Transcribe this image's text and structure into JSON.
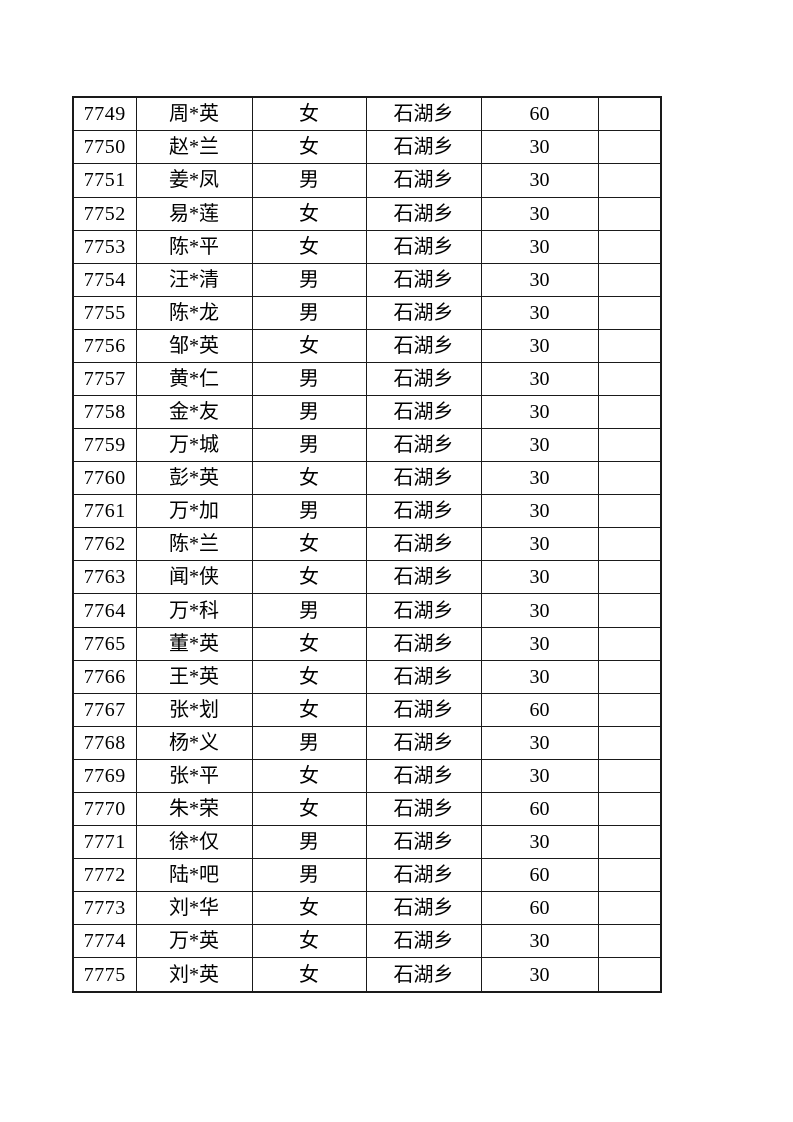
{
  "page": {
    "background_color": "#ffffff",
    "border_color": "#1a1a1a"
  },
  "table": {
    "field_order": [
      "id",
      "name",
      "gender",
      "township",
      "amount",
      "note"
    ],
    "rows": [
      {
        "id": "7749",
        "name": "周*英",
        "gender": "女",
        "township": "石湖乡",
        "amount": "60",
        "note": ""
      },
      {
        "id": "7750",
        "name": "赵*兰",
        "gender": "女",
        "township": "石湖乡",
        "amount": "30",
        "note": ""
      },
      {
        "id": "7751",
        "name": "姜*凤",
        "gender": "男",
        "township": "石湖乡",
        "amount": "30",
        "note": ""
      },
      {
        "id": "7752",
        "name": "易*莲",
        "gender": "女",
        "township": "石湖乡",
        "amount": "30",
        "note": ""
      },
      {
        "id": "7753",
        "name": "陈*平",
        "gender": "女",
        "township": "石湖乡",
        "amount": "30",
        "note": ""
      },
      {
        "id": "7754",
        "name": "汪*清",
        "gender": "男",
        "township": "石湖乡",
        "amount": "30",
        "note": ""
      },
      {
        "id": "7755",
        "name": "陈*龙",
        "gender": "男",
        "township": "石湖乡",
        "amount": "30",
        "note": ""
      },
      {
        "id": "7756",
        "name": "邹*英",
        "gender": "女",
        "township": "石湖乡",
        "amount": "30",
        "note": ""
      },
      {
        "id": "7757",
        "name": "黄*仁",
        "gender": "男",
        "township": "石湖乡",
        "amount": "30",
        "note": ""
      },
      {
        "id": "7758",
        "name": "金*友",
        "gender": "男",
        "township": "石湖乡",
        "amount": "30",
        "note": ""
      },
      {
        "id": "7759",
        "name": "万*城",
        "gender": "男",
        "township": "石湖乡",
        "amount": "30",
        "note": ""
      },
      {
        "id": "7760",
        "name": "彭*英",
        "gender": "女",
        "township": "石湖乡",
        "amount": "30",
        "note": ""
      },
      {
        "id": "7761",
        "name": "万*加",
        "gender": "男",
        "township": "石湖乡",
        "amount": "30",
        "note": ""
      },
      {
        "id": "7762",
        "name": "陈*兰",
        "gender": "女",
        "township": "石湖乡",
        "amount": "30",
        "note": ""
      },
      {
        "id": "7763",
        "name": "闻*侠",
        "gender": "女",
        "township": "石湖乡",
        "amount": "30",
        "note": ""
      },
      {
        "id": "7764",
        "name": "万*科",
        "gender": "男",
        "township": "石湖乡",
        "amount": "30",
        "note": ""
      },
      {
        "id": "7765",
        "name": "董*英",
        "gender": "女",
        "township": "石湖乡",
        "amount": "30",
        "note": ""
      },
      {
        "id": "7766",
        "name": "王*英",
        "gender": "女",
        "township": "石湖乡",
        "amount": "30",
        "note": ""
      },
      {
        "id": "7767",
        "name": "张*划",
        "gender": "女",
        "township": "石湖乡",
        "amount": "60",
        "note": ""
      },
      {
        "id": "7768",
        "name": "杨*义",
        "gender": "男",
        "township": "石湖乡",
        "amount": "30",
        "note": ""
      },
      {
        "id": "7769",
        "name": "张*平",
        "gender": "女",
        "township": "石湖乡",
        "amount": "30",
        "note": ""
      },
      {
        "id": "7770",
        "name": "朱*荣",
        "gender": "女",
        "township": "石湖乡",
        "amount": "60",
        "note": ""
      },
      {
        "id": "7771",
        "name": "徐*仅",
        "gender": "男",
        "township": "石湖乡",
        "amount": "30",
        "note": ""
      },
      {
        "id": "7772",
        "name": "陆*吧",
        "gender": "男",
        "township": "石湖乡",
        "amount": "60",
        "note": ""
      },
      {
        "id": "7773",
        "name": "刘*华",
        "gender": "女",
        "township": "石湖乡",
        "amount": "60",
        "note": ""
      },
      {
        "id": "7774",
        "name": "万*英",
        "gender": "女",
        "township": "石湖乡",
        "amount": "30",
        "note": ""
      },
      {
        "id": "7775",
        "name": "刘*英",
        "gender": "女",
        "township": "石湖乡",
        "amount": "30",
        "note": ""
      }
    ]
  }
}
